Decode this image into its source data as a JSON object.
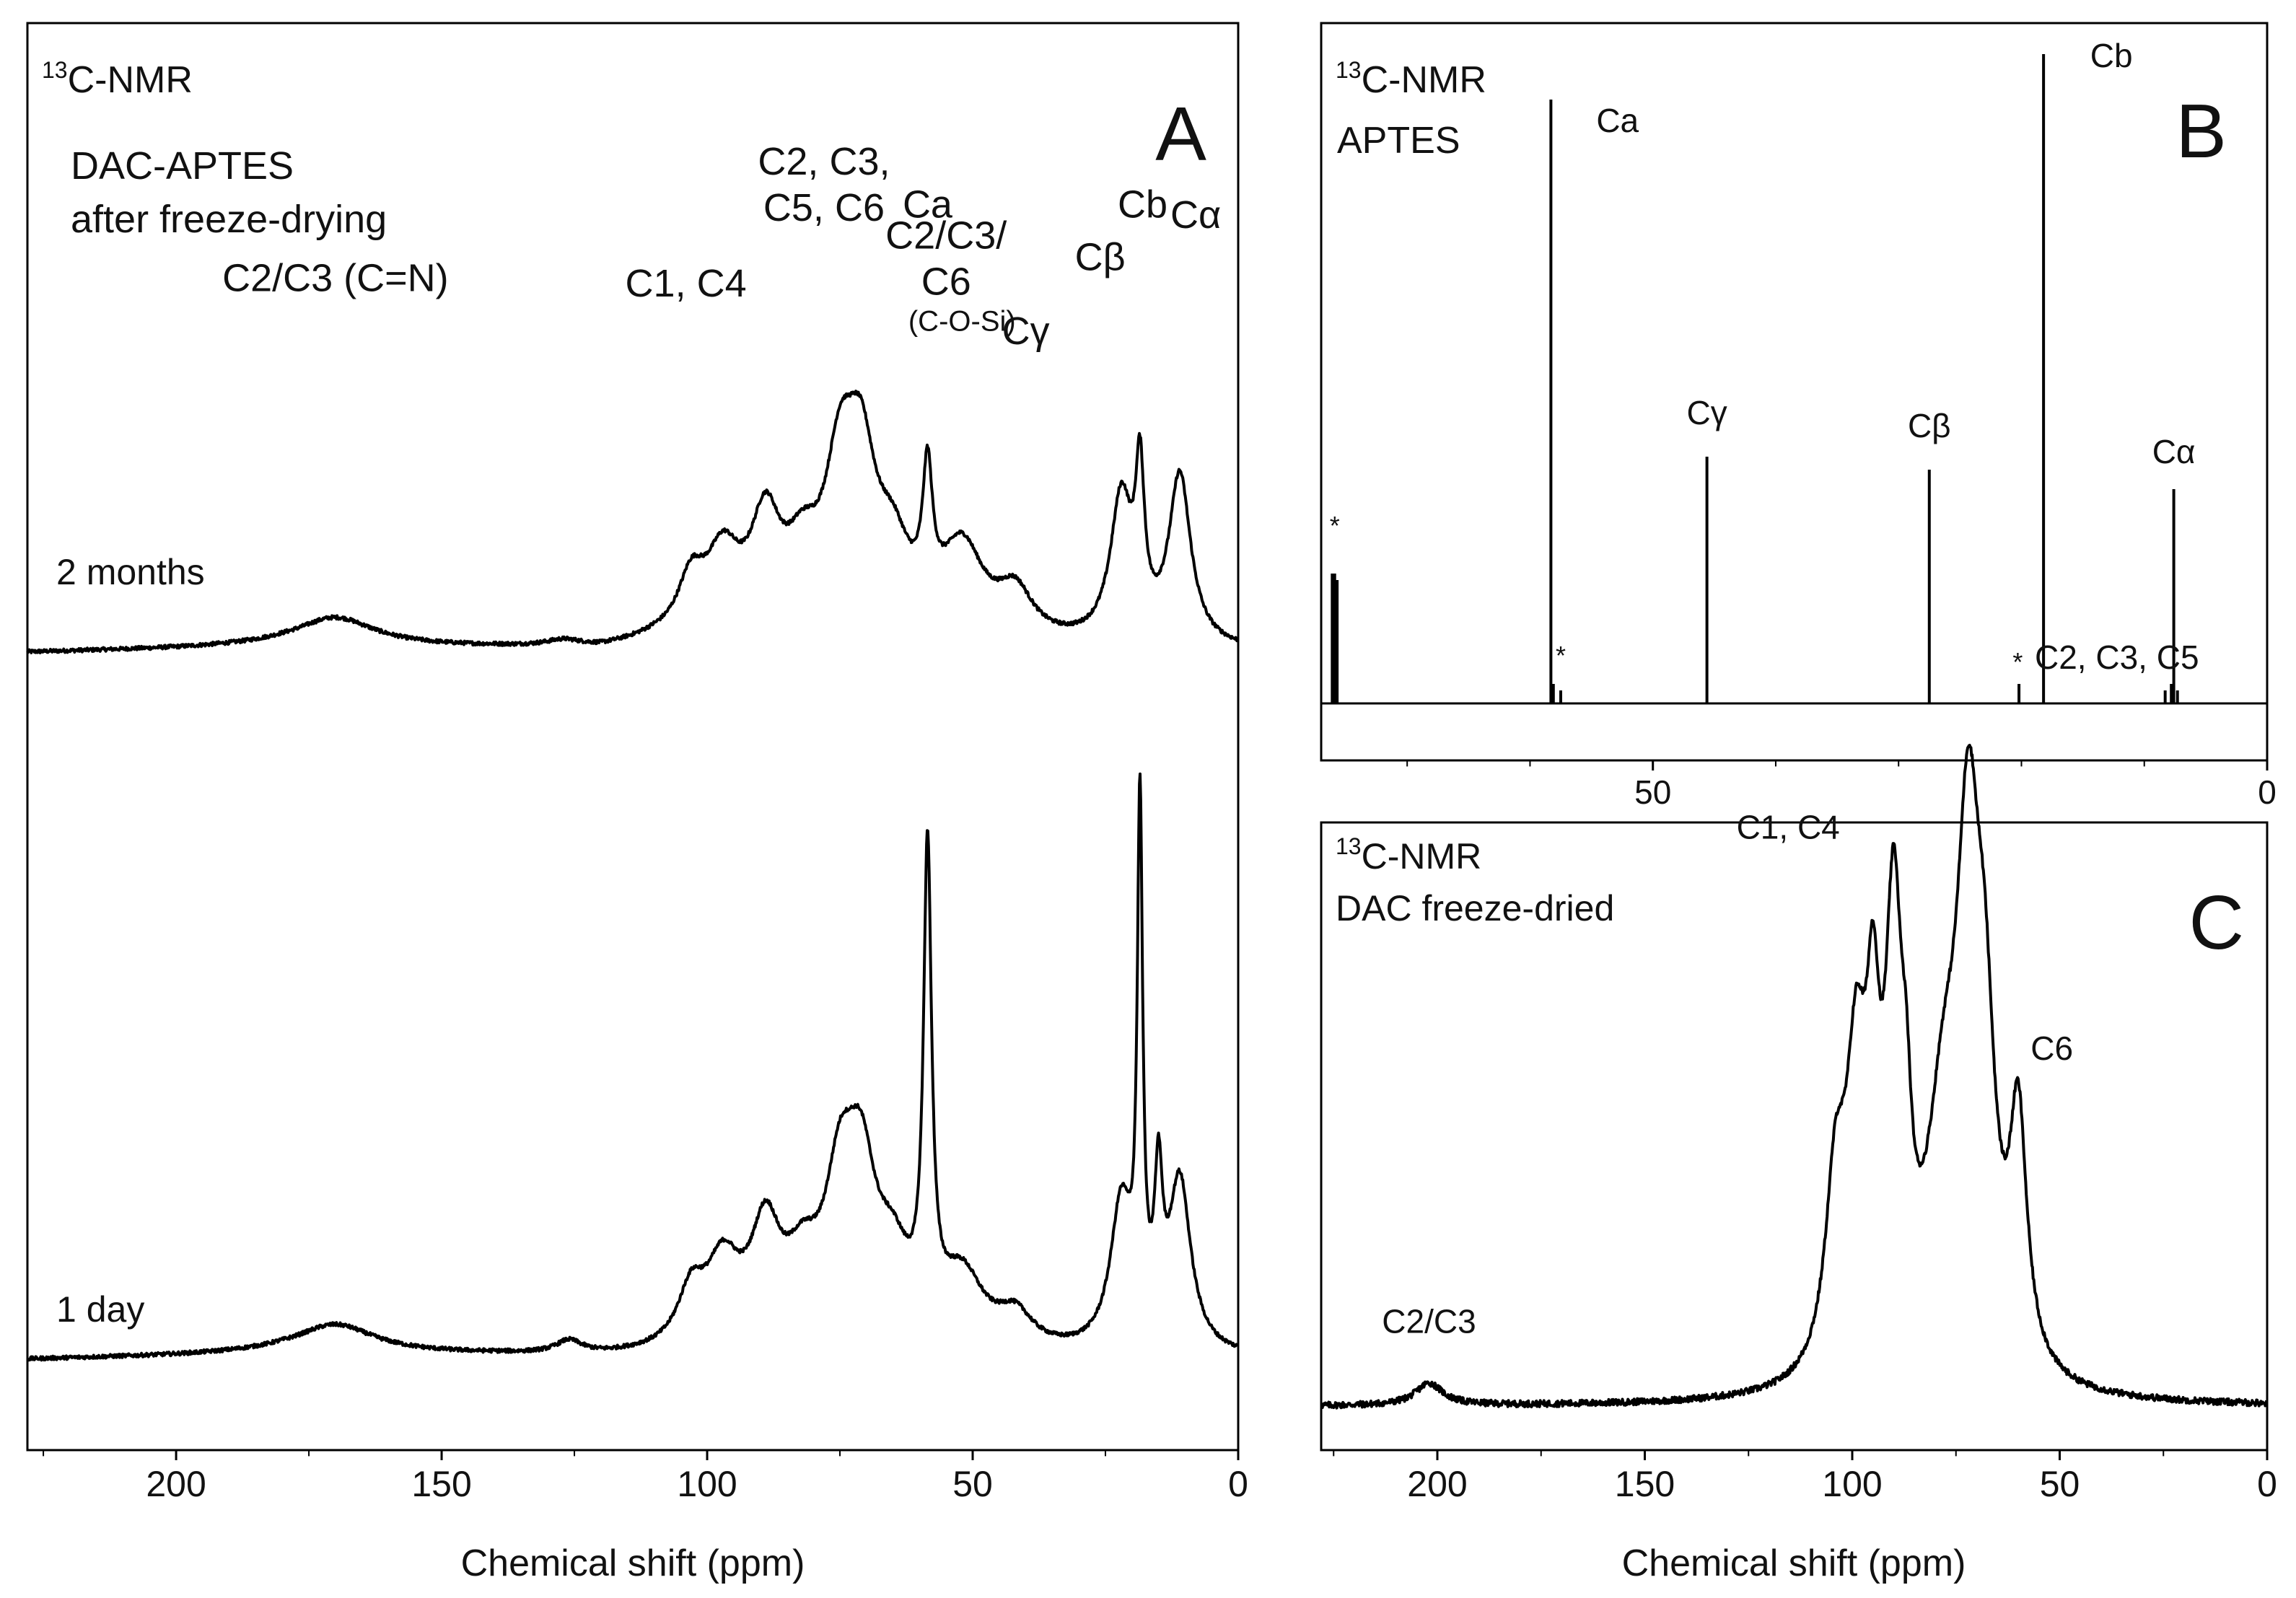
{
  "chart_data": [
    {
      "panel": "A",
      "type": "line",
      "title": "",
      "nucleus_prefix": "13",
      "nucleus_label": "C-NMR",
      "sample_lines": [
        "DAC-APTES",
        "after freeze-drying"
      ],
      "xlabel": "Chemical shift (ppm)",
      "ylabel": "",
      "xlim": [
        228,
        0
      ],
      "xticks": [
        200,
        150,
        100,
        50,
        0
      ],
      "grid": false,
      "series": [
        {
          "name": "2 months",
          "peaks": [
            {
              "x": 170,
              "h": 0.09,
              "w": 9
            },
            {
              "x": 127,
              "h": 0.02,
              "w": 4
            },
            {
              "x": 103,
              "h": 0.16,
              "w": 3
            },
            {
              "x": 97,
              "h": 0.24,
              "w": 4
            },
            {
              "x": 89,
              "h": 0.33,
              "w": 3.5
            },
            {
              "x": 82,
              "h": 0.2,
              "w": 4
            },
            {
              "x": 75,
              "h": 0.44,
              "w": 3.5
            },
            {
              "x": 71,
              "h": 0.46,
              "w": 3.5
            },
            {
              "x": 65,
              "h": 0.22,
              "w": 4
            },
            {
              "x": 58.5,
              "h": 0.4,
              "w": 1.1
            },
            {
              "x": 52,
              "h": 0.28,
              "w": 5
            },
            {
              "x": 42,
              "h": 0.14,
              "w": 4
            },
            {
              "x": 22,
              "h": 0.45,
              "w": 2.5
            },
            {
              "x": 18.5,
              "h": 0.46,
              "w": 1
            },
            {
              "x": 11,
              "h": 0.53,
              "w": 2.5
            }
          ],
          "baseline_drift": [
            [
              228,
              0.0
            ],
            [
              200,
              0.01
            ],
            [
              180,
              0.02
            ],
            [
              140,
              0.01
            ],
            [
              120,
              0.0
            ],
            [
              110,
              0.02
            ],
            [
              0,
              0.0
            ]
          ]
        },
        {
          "name": "1 day",
          "peaks": [
            {
              "x": 170,
              "h": 0.09,
              "w": 9
            },
            {
              "x": 126,
              "h": 0.04,
              "w": 3
            },
            {
              "x": 103,
              "h": 0.16,
              "w": 3
            },
            {
              "x": 97,
              "h": 0.25,
              "w": 4
            },
            {
              "x": 89,
              "h": 0.34,
              "w": 3.5
            },
            {
              "x": 82,
              "h": 0.2,
              "w": 4
            },
            {
              "x": 75,
              "h": 0.43,
              "w": 3.5
            },
            {
              "x": 71,
              "h": 0.46,
              "w": 3.5
            },
            {
              "x": 65,
              "h": 0.22,
              "w": 4
            },
            {
              "x": 58.5,
              "h": 1.46,
              "w": 0.9
            },
            {
              "x": 52,
              "h": 0.22,
              "w": 5
            },
            {
              "x": 42,
              "h": 0.1,
              "w": 4
            },
            {
              "x": 22,
              "h": 0.45,
              "w": 2.5
            },
            {
              "x": 18.5,
              "h": 1.6,
              "w": 0.6
            },
            {
              "x": 15,
              "h": 0.45,
              "w": 0.9
            },
            {
              "x": 11,
              "h": 0.53,
              "w": 2.5
            }
          ],
          "baseline_drift": [
            [
              228,
              0.0
            ],
            [
              200,
              0.01
            ],
            [
              180,
              0.02
            ],
            [
              140,
              0.01
            ],
            [
              120,
              0.0
            ],
            [
              0,
              0.0
            ]
          ]
        }
      ],
      "annotations": [
        {
          "lines": [
            "C2/C3 (C=N)"
          ],
          "x": 170,
          "level": 1.4
        },
        {
          "lines": [
            "C1, C4"
          ],
          "x": 104,
          "level": 1.38
        },
        {
          "lines": [
            "C2, C3,",
            "C5, C6"
          ],
          "x": 78,
          "level": 1.76
        },
        {
          "lines": [
            "C2/C3/",
            "C6"
          ],
          "x": 55,
          "level": 1.48
        },
        {
          "lines": [
            "(C-O-Si)"
          ],
          "x": 52,
          "level": 1.25,
          "small": true
        },
        {
          "lines": [
            "Cγ"
          ],
          "x": 40,
          "level": 1.2
        },
        {
          "lines": [
            "Cβ"
          ],
          "x": 26,
          "level": 1.48
        },
        {
          "lines": [
            "Cα"
          ],
          "x": 8,
          "level": 1.64
        },
        {
          "lines": [
            "Ca"
          ],
          "x": 58.5,
          "level": 1.68
        },
        {
          "lines": [
            "Cb"
          ],
          "x": 18,
          "level": 1.68
        }
      ]
    },
    {
      "panel": "B",
      "type": "line",
      "title": "",
      "nucleus_prefix": "13",
      "nucleus_label": "C-NMR",
      "sample_lines": [
        "APTES"
      ],
      "xlabel": "",
      "ylabel": "",
      "xlim": [
        77,
        0
      ],
      "xticks": [
        50,
        0
      ],
      "grid": false,
      "series": [
        {
          "name": "APTES",
          "sticks": [
            {
              "x": 76.1,
              "h": 0.2
            },
            {
              "x": 75.9,
              "h": 0.2
            },
            {
              "x": 75.7,
              "h": 0.19
            },
            {
              "x": 58.3,
              "h": 0.93
            },
            {
              "x": 58.1,
              "h": 0.03
            },
            {
              "x": 57.5,
              "h": 0.02
            },
            {
              "x": 45.6,
              "h": 0.38
            },
            {
              "x": 27.5,
              "h": 0.36
            },
            {
              "x": 20.2,
              "h": 0.03
            },
            {
              "x": 18.2,
              "h": 1.0
            },
            {
              "x": 8.3,
              "h": 0.02
            },
            {
              "x": 7.8,
              "h": 0.03
            },
            {
              "x": 7.6,
              "h": 0.33
            },
            {
              "x": 7.3,
              "h": 0.02
            }
          ]
        }
      ],
      "annotations": [
        {
          "text": "*",
          "x": 75.9,
          "h": 0.26,
          "small": true
        },
        {
          "text": "*",
          "x": 57.5,
          "h": 0.06,
          "small": true
        },
        {
          "text": "*",
          "x": 20.3,
          "h": 0.05,
          "small": true
        },
        {
          "text": "Ca",
          "x": 56.4,
          "h": 0.88
        },
        {
          "text": "Cγ",
          "x": 45.6,
          "h": 0.43
        },
        {
          "text": "Cβ",
          "x": 27.5,
          "h": 0.41
        },
        {
          "text": "Cb",
          "x": 16.2,
          "h": 0.98
        },
        {
          "text": "Cα",
          "x": 7.6,
          "h": 0.37
        }
      ]
    },
    {
      "panel": "C",
      "type": "line",
      "title": "",
      "nucleus_prefix": "13",
      "nucleus_label": "C-NMR",
      "sample_lines": [
        "DAC freeze-dried"
      ],
      "xlabel": "Chemical shift (ppm)",
      "ylabel": "",
      "xlim": [
        228,
        0
      ],
      "xticks": [
        200,
        150,
        100,
        50,
        0
      ],
      "grid": false,
      "series": [
        {
          "name": "DAC freeze-dried",
          "peaks": [
            {
              "x": 202,
              "h": 0.028,
              "w": 4
            },
            {
              "x": 104,
              "h": 0.22,
              "w": 3
            },
            {
              "x": 99,
              "h": 0.34,
              "w": 3
            },
            {
              "x": 95,
              "h": 0.32,
              "w": 2
            },
            {
              "x": 90,
              "h": 0.52,
              "w": 2.5
            },
            {
              "x": 87,
              "h": 0.15,
              "w": 1.5
            },
            {
              "x": 78,
              "h": 0.28,
              "w": 5
            },
            {
              "x": 72,
              "h": 0.58,
              "w": 3.5
            },
            {
              "x": 68,
              "h": 0.3,
              "w": 3
            },
            {
              "x": 60,
              "h": 0.3,
              "w": 2.5
            }
          ]
        }
      ],
      "annotations": [
        {
          "text": "C2/C3",
          "x": 202,
          "h": 0.1
        },
        {
          "text": "C1, C4",
          "x": 103,
          "h": 0.77
        },
        {
          "text": "C2, C3, C5",
          "x": 56,
          "h": 1.0
        },
        {
          "text": "C6",
          "x": 57,
          "h": 0.47
        }
      ]
    }
  ]
}
